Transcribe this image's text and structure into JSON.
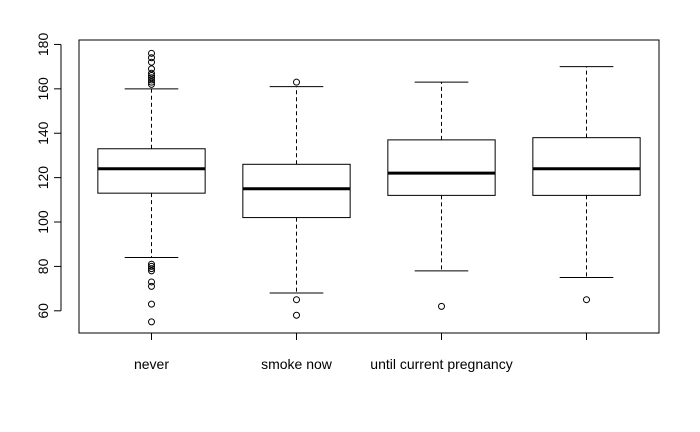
{
  "chart_data": {
    "type": "box",
    "title": "",
    "xlabel": "",
    "ylabel": "",
    "ylim": [
      50,
      182
    ],
    "yticks": [
      60,
      80,
      100,
      120,
      140,
      160,
      180
    ],
    "categories": [
      "never",
      "smoke now",
      "until current pregnancy",
      ""
    ],
    "boxes": [
      {
        "whisker_low": 84,
        "q1": 113,
        "median": 124,
        "q3": 133,
        "whisker_high": 160,
        "outliers": [
          55,
          63,
          71,
          73,
          78,
          79,
          80,
          81,
          162,
          163,
          164,
          165,
          166,
          167,
          169,
          172,
          174,
          176
        ]
      },
      {
        "whisker_low": 68,
        "q1": 102,
        "median": 115,
        "q3": 126,
        "whisker_high": 161,
        "outliers": [
          58,
          65,
          163
        ]
      },
      {
        "whisker_low": 78,
        "q1": 112,
        "median": 122,
        "q3": 137,
        "whisker_high": 163,
        "outliers": [
          62
        ]
      },
      {
        "whisker_low": 75,
        "q1": 112,
        "median": 124,
        "q3": 138,
        "whisker_high": 170,
        "outliers": [
          65
        ]
      }
    ],
    "grid": false,
    "legend": "none"
  }
}
